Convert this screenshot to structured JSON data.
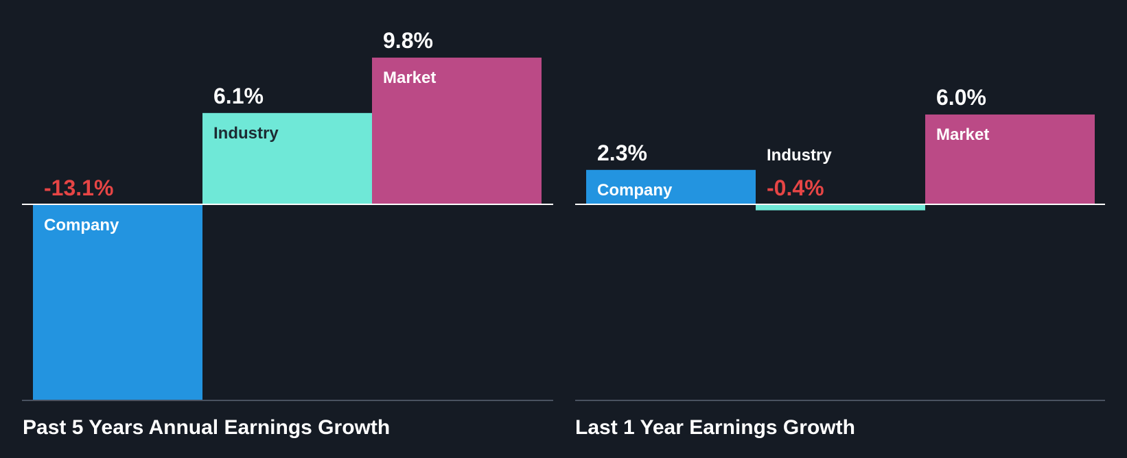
{
  "colors": {
    "background": "#151b24",
    "company": "#2394e0",
    "industry": "#6fe8d7",
    "market": "#bb4a86",
    "positive_text": "#ffffff",
    "negative_text": "#e64545",
    "baseline": "#ffffff",
    "axis": "#4a5260"
  },
  "chart_data": [
    {
      "type": "bar",
      "title": "Past 5 Years Annual Earnings Growth",
      "categories": [
        "Company",
        "Industry",
        "Market"
      ],
      "values": [
        -13.1,
        6.1,
        9.8
      ],
      "value_labels": [
        "-13.1%",
        "6.1%",
        "9.8%"
      ],
      "unit": "%",
      "ylim": [
        -13.1,
        9.8
      ],
      "xlabel": "",
      "ylabel": "",
      "grid": false
    },
    {
      "type": "bar",
      "title": "Last 1 Year Earnings Growth",
      "categories": [
        "Company",
        "Industry",
        "Market"
      ],
      "values": [
        2.3,
        -0.4,
        6.0
      ],
      "value_labels": [
        "2.3%",
        "-0.4%",
        "6.0%"
      ],
      "unit": "%",
      "ylim": [
        -13.1,
        9.8
      ],
      "xlabel": "",
      "ylabel": "",
      "grid": false
    }
  ]
}
